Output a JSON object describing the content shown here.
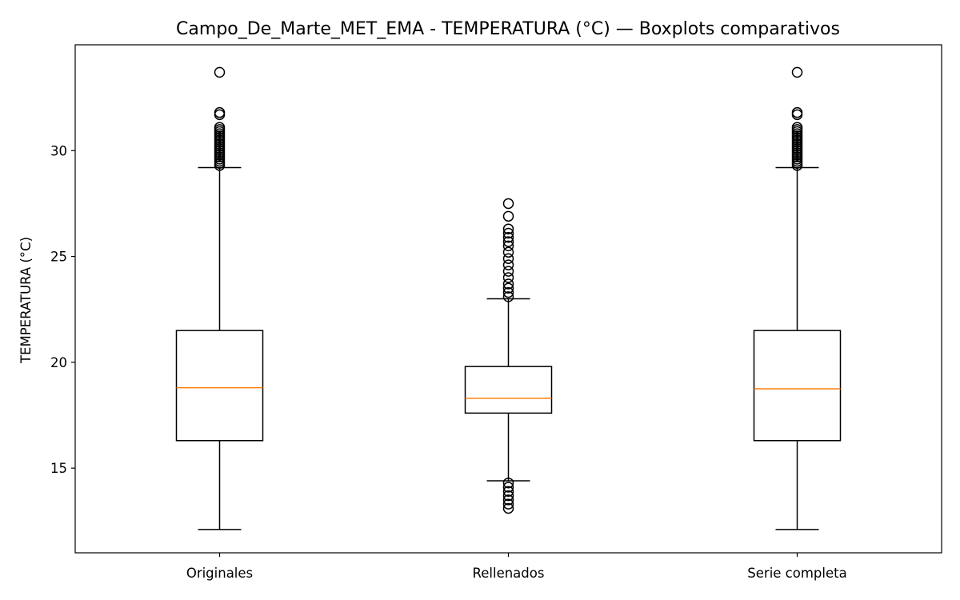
{
  "chart_data": {
    "type": "boxplot",
    "title": "Campo_De_Marte_MET_EMA - TEMPERATURA (°C) — Boxplots comparativos",
    "xlabel": "",
    "ylabel": "TEMPERATURA (°C)",
    "ylim": [
      11.0,
      35.0
    ],
    "yticks": [
      "15",
      "20",
      "25",
      "30"
    ],
    "ytick_values": [
      15,
      20,
      25,
      30
    ],
    "grid": false,
    "colors": {
      "box": "#000000",
      "median": "#ff7f0e",
      "flier": "#000000"
    },
    "categories": [
      "Originales",
      "Rellenados",
      "Serie completa"
    ],
    "boxes": [
      {
        "whislo": 12.1,
        "q1": 16.3,
        "med": 18.8,
        "q3": 21.5,
        "whishi": 29.2,
        "fliers": [
          29.3,
          29.4,
          29.5,
          29.6,
          29.7,
          29.8,
          29.9,
          30.0,
          30.1,
          30.2,
          30.3,
          30.4,
          30.5,
          30.6,
          30.7,
          30.8,
          30.9,
          31.0,
          31.1,
          31.7,
          31.8,
          33.7
        ]
      },
      {
        "whislo": 14.4,
        "q1": 17.6,
        "med": 18.3,
        "q3": 19.8,
        "whishi": 23.0,
        "fliers": [
          13.1,
          13.3,
          13.5,
          13.7,
          13.9,
          14.1,
          14.3,
          23.1,
          23.3,
          23.5,
          23.7,
          24.0,
          24.3,
          24.6,
          24.9,
          25.2,
          25.5,
          25.7,
          25.9,
          26.1,
          26.3,
          26.9,
          27.5
        ]
      },
      {
        "whislo": 12.1,
        "q1": 16.3,
        "med": 18.75,
        "q3": 21.5,
        "whishi": 29.2,
        "fliers": [
          29.3,
          29.4,
          29.5,
          29.6,
          29.7,
          29.8,
          29.9,
          30.0,
          30.1,
          30.2,
          30.3,
          30.4,
          30.5,
          30.6,
          30.7,
          30.8,
          30.9,
          31.0,
          31.1,
          31.7,
          31.8,
          33.7
        ]
      }
    ]
  }
}
